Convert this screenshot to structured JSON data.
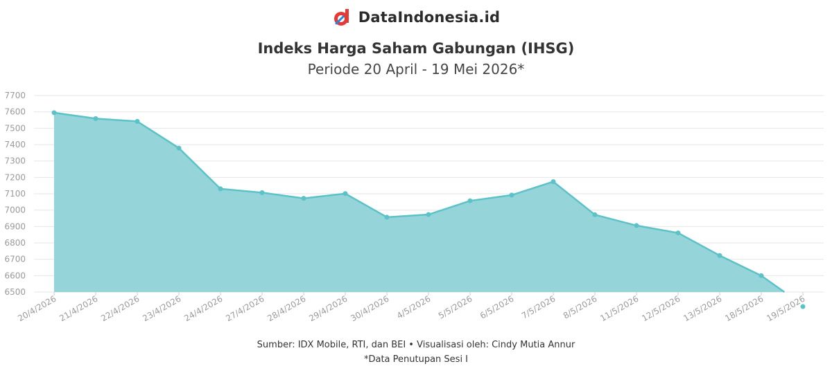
{
  "brand": {
    "name": "DataIndonesia.id",
    "logo_icon": "dataindonesia-logo-icon"
  },
  "colors": {
    "area_fill": "#8fd3d8",
    "line": "#5bc2c8",
    "grid": "#e6e6e6",
    "axis_text": "#9a9a9a",
    "brand_red": "#e53935"
  },
  "chart_data": {
    "type": "area",
    "title": "Indeks Harga Saham Gabungan (IHSG)",
    "subtitle": "Periode 20 April - 19 Mei 2026*",
    "xlabel": "",
    "ylabel": "",
    "categories": [
      "20/4/2026",
      "21/4/2026",
      "22/4/2026",
      "23/4/2026",
      "24/4/2026",
      "27/4/2026",
      "28/4/2026",
      "29/4/2026",
      "30/4/2026",
      "4/5/2026",
      "5/5/2026",
      "6/5/2026",
      "7/5/2026",
      "8/5/2026",
      "11/5/2026",
      "12/5/2026",
      "13/5/2026",
      "18/5/2026",
      "19/5/2026"
    ],
    "values": [
      7595,
      7559,
      7542,
      7379,
      7130,
      7107,
      7072,
      7101,
      6957,
      6973,
      7057,
      7092,
      7174,
      6972,
      6906,
      6861,
      6723,
      6600,
      6420
    ],
    "yticks": [
      6500,
      6600,
      6700,
      6800,
      6900,
      7000,
      7100,
      7200,
      7300,
      7400,
      7500,
      7600,
      7700
    ],
    "ylim": [
      6500,
      7700
    ],
    "grid": true,
    "legend": "none"
  },
  "footer": {
    "source": "Sumber: IDX Mobile, RTI, dan BEI • Visualisasi oleh: Cindy Mutia Annur",
    "note": "*Data Penutupan Sesi I"
  }
}
